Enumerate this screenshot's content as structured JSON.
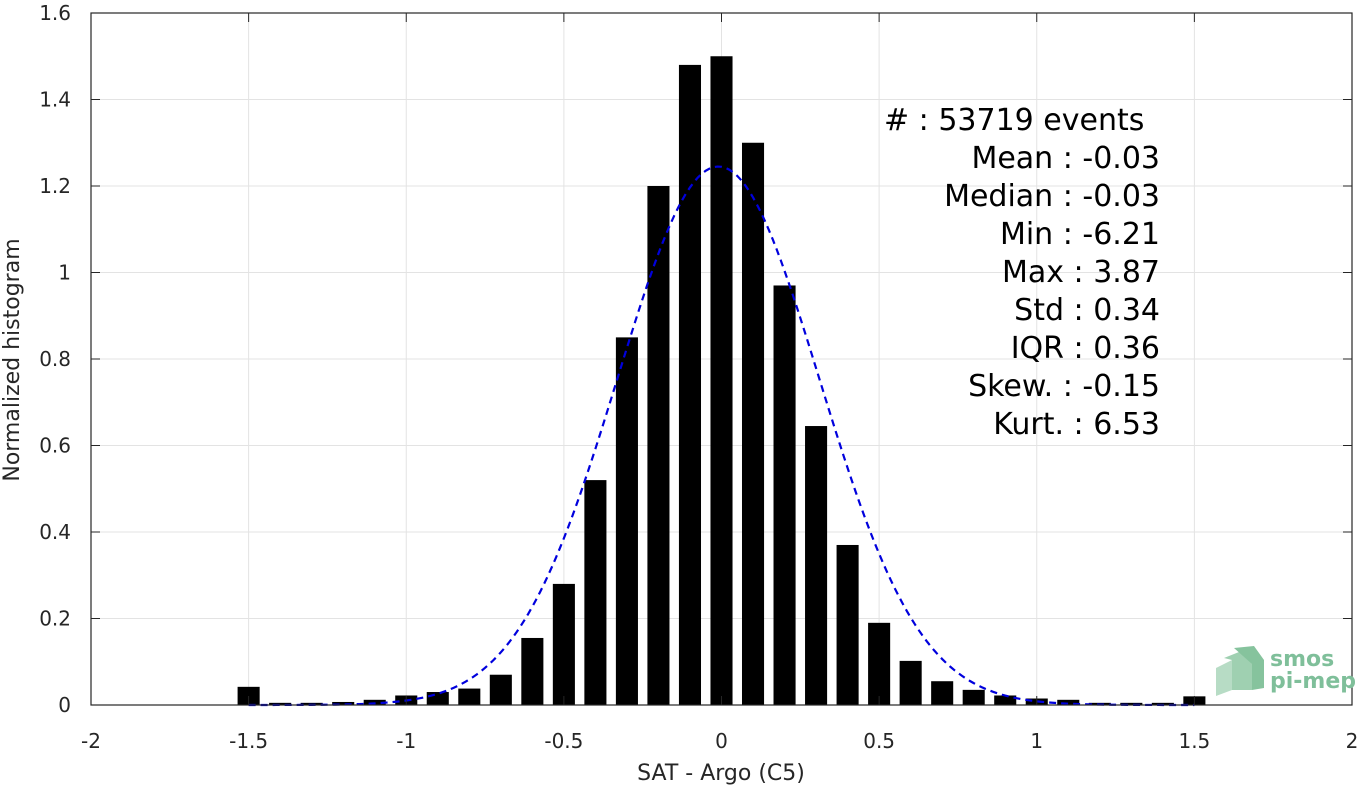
{
  "chart_data": {
    "type": "bar",
    "xlabel": "SAT - Argo (C5)",
    "ylabel": "Normalized histogram",
    "xlim": [
      -2,
      2
    ],
    "ylim": [
      0,
      1.6
    ],
    "xticks": [
      -2,
      -1.5,
      -1,
      -0.5,
      0,
      0.5,
      1,
      1.5,
      2
    ],
    "xtick_labels": [
      "-2",
      "-1.5",
      "-1",
      "-0.5",
      "0",
      "0.5",
      "1",
      "1.5",
      "2"
    ],
    "yticks": [
      0,
      0.2,
      0.4,
      0.6,
      0.8,
      1,
      1.2,
      1.4,
      1.6
    ],
    "ytick_labels": [
      "0",
      "0.2",
      "0.4",
      "0.6",
      "0.8",
      "1",
      "1.2",
      "1.4",
      "1.6"
    ],
    "grid": true,
    "bar_color": "#000000",
    "bins": [
      -1.5,
      -1.4,
      -1.3,
      -1.2,
      -1.1,
      -1.0,
      -0.9,
      -0.8,
      -0.7,
      -0.6,
      -0.5,
      -0.4,
      -0.3,
      -0.2,
      -0.1,
      0.0,
      0.1,
      0.2,
      0.3,
      0.4,
      0.5,
      0.6,
      0.7,
      0.8,
      0.9,
      1.0,
      1.1,
      1.2,
      1.3,
      1.4,
      1.5
    ],
    "values": [
      0.042,
      0.005,
      0.005,
      0.007,
      0.012,
      0.022,
      0.03,
      0.038,
      0.07,
      0.155,
      0.28,
      0.52,
      0.85,
      1.2,
      1.48,
      1.5,
      1.3,
      0.97,
      0.645,
      0.37,
      0.19,
      0.102,
      0.055,
      0.035,
      0.022,
      0.015,
      0.012,
      0.005,
      0.005,
      0.005,
      0.02
    ],
    "fit": {
      "name": "Gaussian fit",
      "color": "#0000dd",
      "style": "dashed",
      "mean": -0.01,
      "std": 0.32,
      "peak": 1.245,
      "range": [
        -1.5,
        1.5
      ]
    },
    "stats": [
      {
        "text": "#   : 53719 events",
        "anchor": "start"
      },
      {
        "text": "Mean : -0.03",
        "anchor": "end"
      },
      {
        "text": "Median : -0.03",
        "anchor": "end"
      },
      {
        "text": "Min : -6.21",
        "anchor": "end"
      },
      {
        "text": "Max : 3.87",
        "anchor": "end"
      },
      {
        "text": "Std : 0.34",
        "anchor": "end"
      },
      {
        "text": "IQR : 0.36",
        "anchor": "end"
      },
      {
        "text": "Skew. : -0.15",
        "anchor": "end"
      },
      {
        "text": "Kurt. : 6.53",
        "anchor": "end"
      }
    ]
  },
  "logo": {
    "line1": "smos",
    "line2": "pi-mep",
    "color": "#7fbf9a"
  }
}
